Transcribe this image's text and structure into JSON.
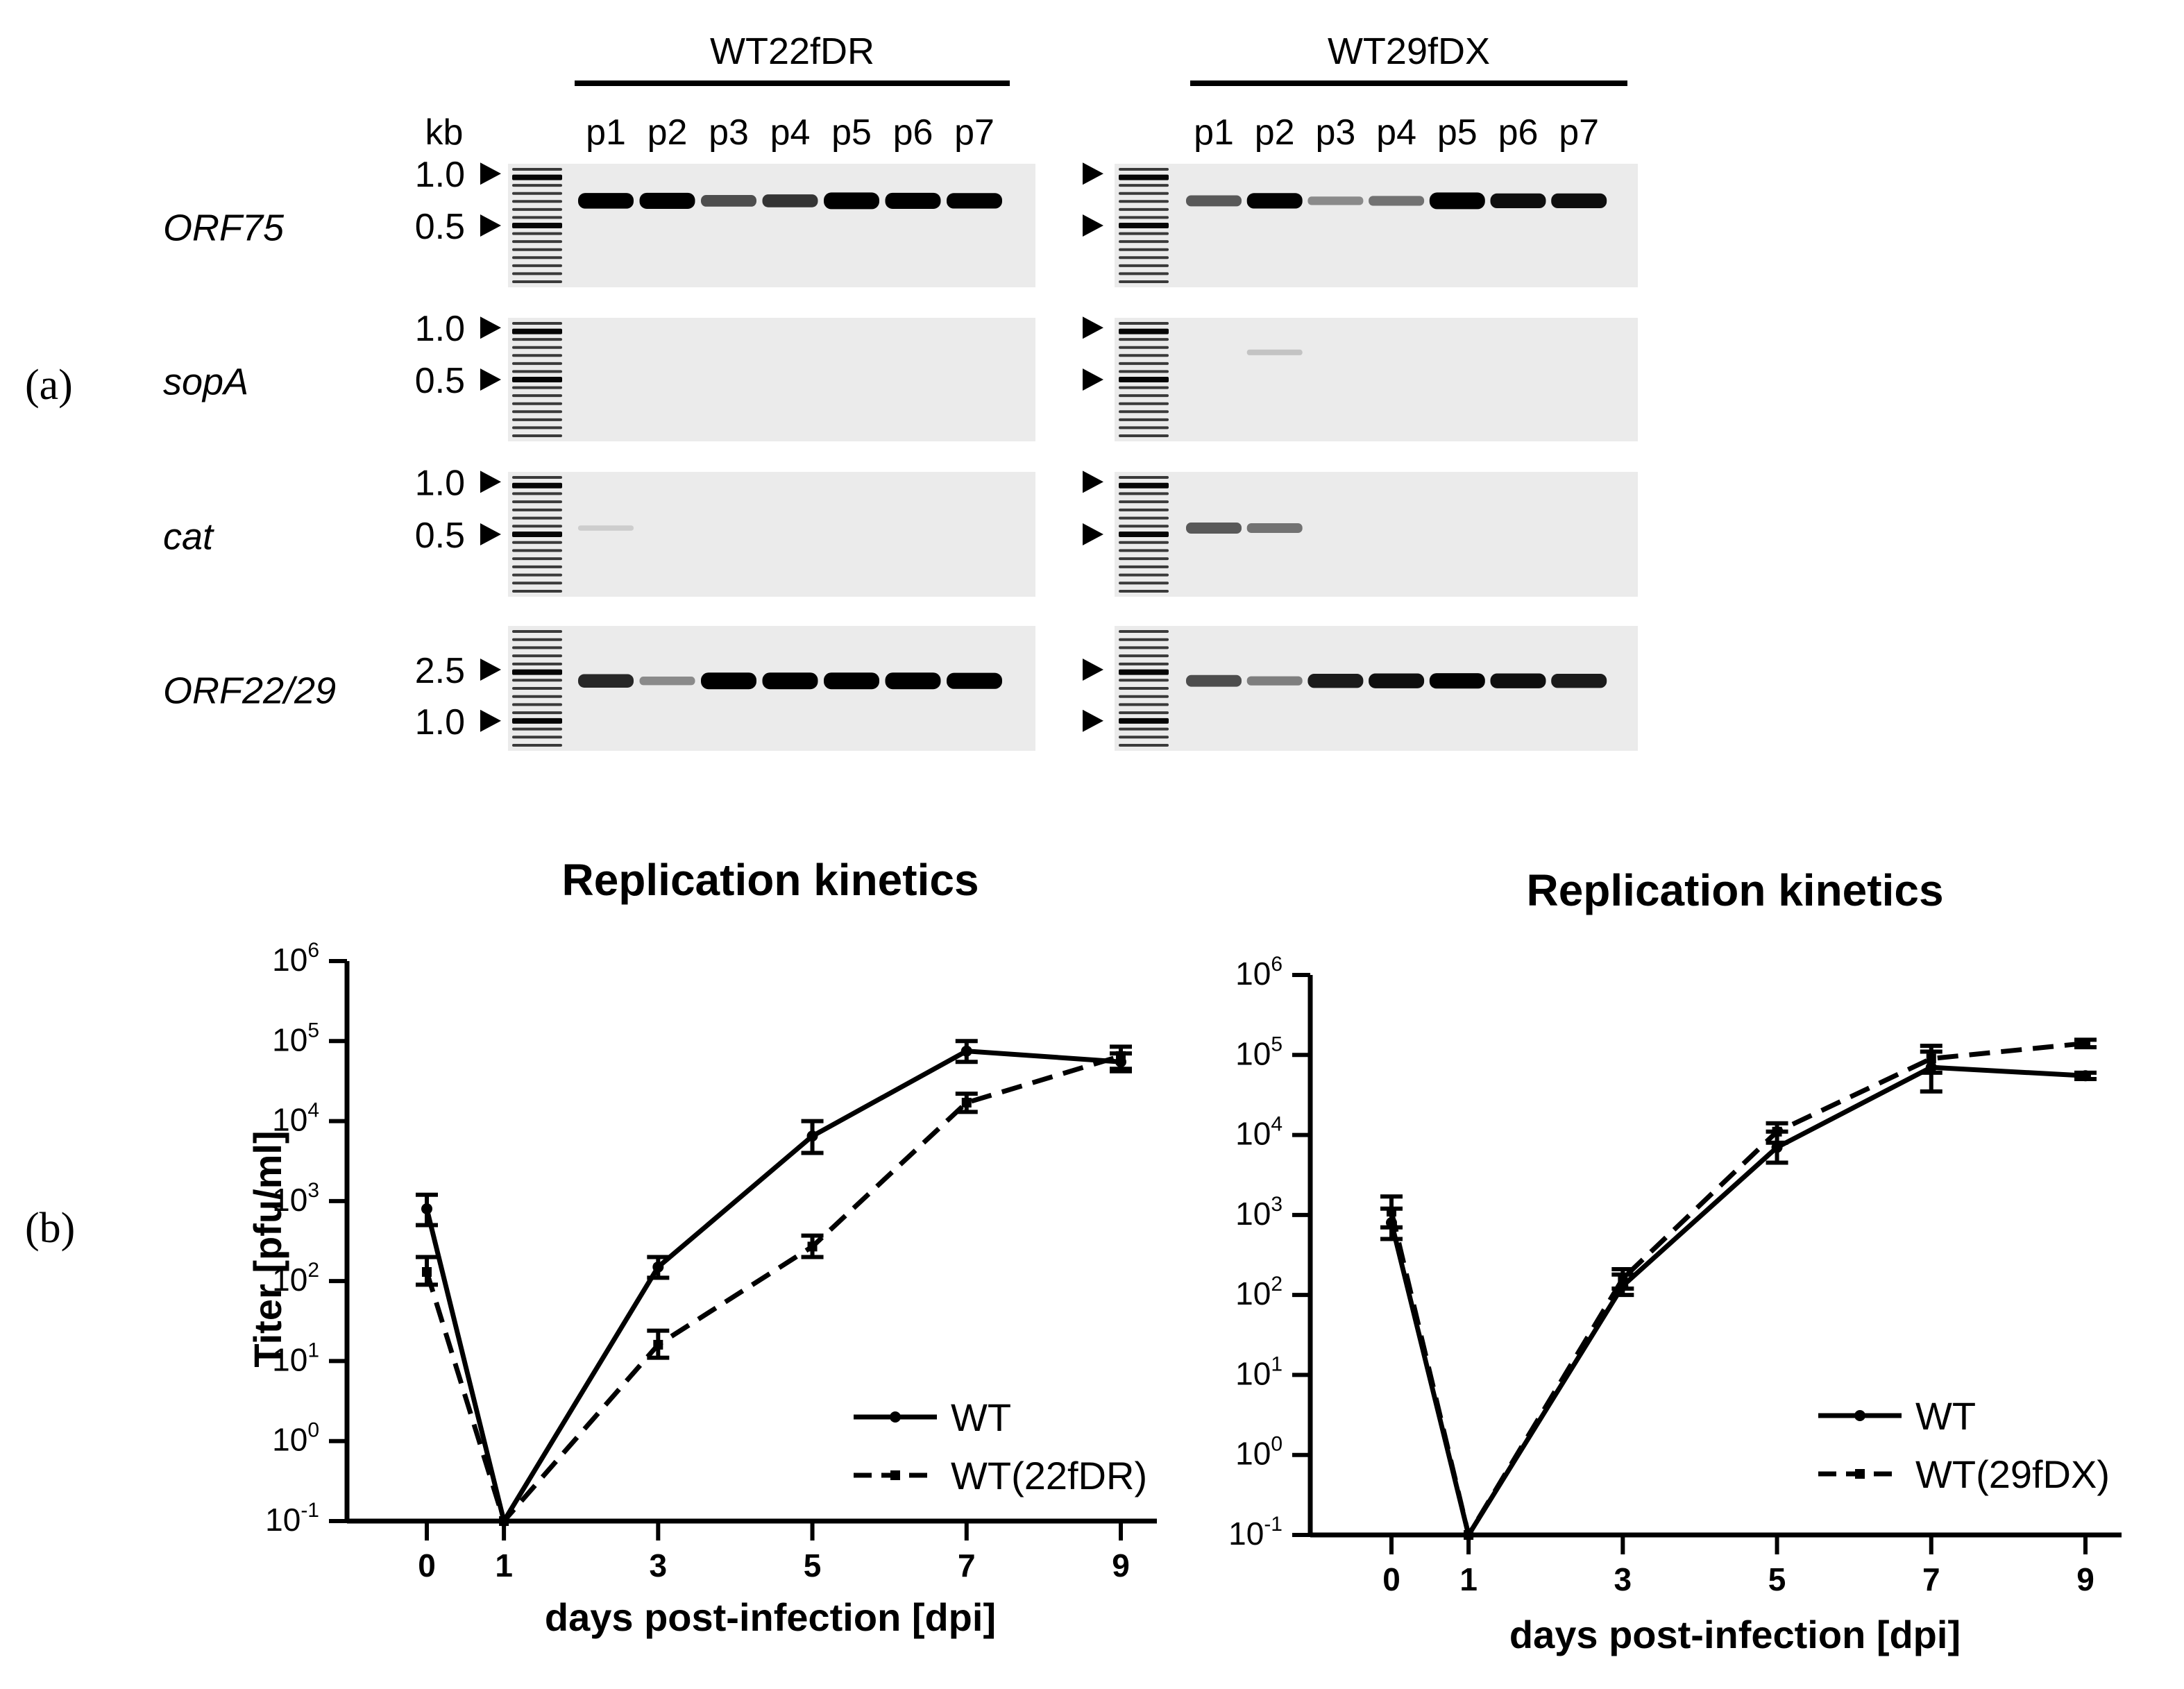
{
  "panel_a": {
    "label": "(a)",
    "kb_label": "kb",
    "groups": [
      {
        "name": "WT22fDR",
        "lanes": [
          "p1",
          "p2",
          "p3",
          "p4",
          "p5",
          "p6",
          "p7"
        ]
      },
      {
        "name": "WT29fDX",
        "lanes": [
          "p1",
          "p2",
          "p3",
          "p4",
          "p5",
          "p6",
          "p7"
        ]
      }
    ],
    "rows": [
      {
        "gene": "ORF75",
        "markers": [
          "1.0",
          "0.5"
        ],
        "bands": [
          [
            0.92,
            0.95,
            0.6,
            0.7,
            1.0,
            0.95,
            0.9
          ],
          [
            0.55,
            0.9,
            0.35,
            0.45,
            1.0,
            0.85,
            0.85
          ]
        ]
      },
      {
        "gene": "sopA",
        "markers": [
          "1.0",
          "0.5"
        ],
        "bands": [
          [
            0,
            0,
            0,
            0,
            0,
            0,
            0
          ],
          [
            0,
            0.12,
            0,
            0,
            0,
            0,
            0
          ]
        ]
      },
      {
        "gene": "cat",
        "markers": [
          "1.0",
          "0.5"
        ],
        "bands": [
          [
            0.08,
            0,
            0,
            0,
            0,
            0,
            0
          ],
          [
            0.55,
            0.45,
            0,
            0,
            0,
            0,
            0
          ]
        ]
      },
      {
        "gene": "ORF22/29",
        "markers": [
          "2.5",
          "1.0"
        ],
        "bands": [
          [
            0.75,
            0.35,
            1.0,
            1.0,
            1.0,
            1.0,
            0.95
          ],
          [
            0.6,
            0.4,
            0.8,
            0.85,
            0.9,
            0.85,
            0.8
          ]
        ]
      }
    ]
  },
  "panel_b": {
    "label": "(b)",
    "chart_data": [
      {
        "type": "line",
        "title": "Replication kinetics",
        "xlabel": "days post-infection [dpi]",
        "ylabel": "Titer [pfu/ml]",
        "yscale": "log",
        "ylim": [
          0.1,
          1000000
        ],
        "y_ticks": [
          {
            "base": "10",
            "exp": "-1"
          },
          {
            "base": "10",
            "exp": "0"
          },
          {
            "base": "10",
            "exp": "1"
          },
          {
            "base": "10",
            "exp": "2"
          },
          {
            "base": "10",
            "exp": "3"
          },
          {
            "base": "10",
            "exp": "4"
          },
          {
            "base": "10",
            "exp": "5"
          },
          {
            "base": "10",
            "exp": "6"
          }
        ],
        "x_ticks": [
          "0",
          "1",
          "3",
          "5",
          "7",
          "9"
        ],
        "legend_position": "bottom-right",
        "series": [
          {
            "name": "WT",
            "style": "solid",
            "points": [
              [
                0,
                800,
                500,
                1200
              ],
              [
                1,
                0.1,
                0.1,
                0.1
              ],
              [
                3,
                150,
                110,
                200
              ],
              [
                5,
                6500,
                4000,
                10000
              ],
              [
                7,
                75000,
                55000,
                100000
              ],
              [
                9,
                55000,
                45000,
                70000
              ]
            ]
          },
          {
            "name": "WT(22fDR)",
            "style": "dashed",
            "points": [
              [
                0,
                130,
                90,
                200
              ],
              [
                1,
                0.1,
                0.1,
                0.1
              ],
              [
                3,
                16,
                11,
                24
              ],
              [
                5,
                270,
                200,
                370
              ],
              [
                7,
                17000,
                13000,
                22000
              ],
              [
                9,
                65000,
                42000,
                85000
              ]
            ]
          }
        ]
      },
      {
        "type": "line",
        "title": "Replication kinetics",
        "xlabel": "days post-infection [dpi]",
        "ylabel": "",
        "yscale": "log",
        "ylim": [
          0.1,
          1000000
        ],
        "y_ticks": [
          {
            "base": "10",
            "exp": "-1"
          },
          {
            "base": "10",
            "exp": "0"
          },
          {
            "base": "10",
            "exp": "1"
          },
          {
            "base": "10",
            "exp": "2"
          },
          {
            "base": "10",
            "exp": "3"
          },
          {
            "base": "10",
            "exp": "4"
          },
          {
            "base": "10",
            "exp": "5"
          },
          {
            "base": "10",
            "exp": "6"
          }
        ],
        "x_ticks": [
          "0",
          "1",
          "3",
          "5",
          "7",
          "9"
        ],
        "legend_position": "bottom-right",
        "series": [
          {
            "name": "WT",
            "style": "solid",
            "points": [
              [
                0,
                800,
                500,
                1200
              ],
              [
                1,
                0.1,
                0.1,
                0.1
              ],
              [
                3,
                130,
                100,
                180
              ],
              [
                5,
                7000,
                4500,
                11000
              ],
              [
                7,
                70000,
                35000,
                110000
              ],
              [
                9,
                55000,
                50000,
                60000
              ]
            ]
          },
          {
            "name": "WT(29fDX)",
            "style": "dashed",
            "points": [
              [
                0,
                1100,
                700,
                1700
              ],
              [
                1,
                0.1,
                0.1,
                0.1
              ],
              [
                3,
                160,
                120,
                210
              ],
              [
                5,
                11000,
                8000,
                14000
              ],
              [
                7,
                90000,
                60000,
                130000
              ],
              [
                9,
                140000,
                125000,
                155000
              ]
            ]
          }
        ]
      }
    ]
  }
}
